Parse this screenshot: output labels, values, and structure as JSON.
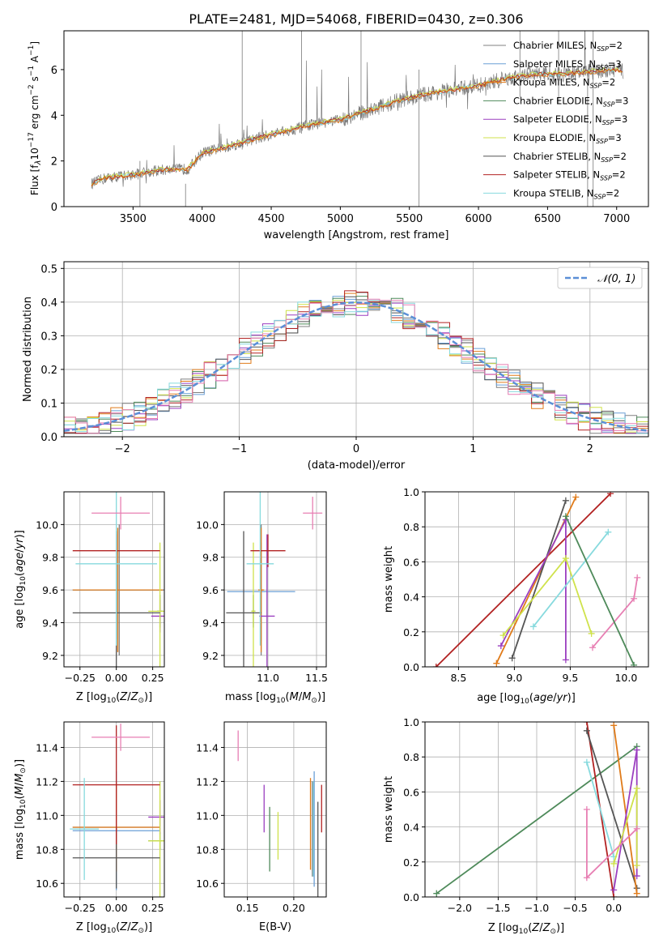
{
  "title": "PLATE=2481, MJD=54068, FIBERID=0430, z=0.306",
  "colors": {
    "chabrier_miles": "#808080",
    "salpeter_miles": "#6a9fd6",
    "kroupa_miles": "#e07b1a",
    "chabrier_elodie": "#4e8a5a",
    "salpeter_elodie": "#9b3fc0",
    "kroupa_elodie": "#cfe24b",
    "chabrier_stelib": "#555555",
    "salpeter_stelib": "#b22222",
    "kroupa_stelib": "#87dade",
    "normal_curve": "#5b8fd6",
    "pink": "#e77fb3"
  },
  "chart_data": [
    {
      "type": "line",
      "id": "spectrum",
      "xlabel": "wavelength [Angstrom, rest frame]",
      "ylabel": "Flux [f_λ 10^-17 erg cm^-2 s^-1 A^-1]",
      "xlim": [
        3000,
        7230
      ],
      "ylim": [
        0,
        7.7
      ],
      "xticks": [
        3500,
        4000,
        4500,
        5000,
        5500,
        6000,
        6500,
        7000
      ],
      "yticks": [
        0,
        2,
        4,
        6
      ],
      "legend_position": "right",
      "legend": [
        "Chabrier MILES, N_SSP=2",
        "Salpeter MILES, N_SSP=3",
        "Kroupa MILES, N_SSP=2",
        "Chabrier ELODIE, N_SSP=3",
        "Salpeter ELODIE, N_SSP=3",
        "Kroupa ELODIE, N_SSP=3",
        "Chabrier STELIB, N_SSP=2",
        "Salpeter STELIB, N_SSP=2",
        "Kroupa STELIB, N_SSP=2"
      ],
      "continuum": {
        "x": [
          3200,
          3300,
          3500,
          3700,
          3900,
          4000,
          4200,
          4400,
          4600,
          4800,
          5000,
          5200,
          5400,
          5600,
          5800,
          6000,
          6200,
          6400,
          6600,
          6800,
          7000,
          7050
        ],
        "y": [
          1.0,
          1.25,
          1.4,
          1.6,
          1.65,
          2.35,
          2.65,
          3.0,
          3.3,
          3.6,
          3.8,
          4.2,
          4.6,
          4.9,
          5.1,
          5.3,
          5.6,
          5.8,
          5.8,
          5.9,
          6.0,
          5.9
        ]
      }
    },
    {
      "type": "line",
      "id": "residuals",
      "xlabel": "(data-model)/error",
      "ylabel": "Normed distribution",
      "xlim": [
        -2.5,
        2.5
      ],
      "ylim": [
        0,
        0.52
      ],
      "xticks": [
        -2,
        -1,
        0,
        1,
        2
      ],
      "yticks": [
        0.0,
        0.1,
        0.2,
        0.3,
        0.4,
        0.5
      ],
      "legend_position": "top-right",
      "legend": [
        "𝒩(0, 1)"
      ]
    },
    {
      "type": "scatter",
      "id": "age_vs_Z",
      "xlabel": "Z [log10(Z/Z⊙)]",
      "ylabel": "age  [log10(age/yr)]",
      "xlim": [
        -0.36,
        0.33
      ],
      "ylim": [
        9.13,
        10.2
      ],
      "xticks": [
        -0.25,
        0.0,
        0.25
      ],
      "xticklabels": [
        "−0.25",
        "0.00",
        "0.25"
      ],
      "yticks": [
        9.2,
        9.4,
        9.6,
        9.8,
        10.0
      ],
      "series": [
        {
          "name": "Chabrier MILES",
          "color": "chabrier_miles",
          "x": 0.02,
          "y": 9.6,
          "xerr": 0.32,
          "yerr": 0.4
        },
        {
          "name": "Salpeter MILES",
          "color": "salpeter_miles",
          "x": 0.0,
          "y": 9.6,
          "xerr": 0.3,
          "yerr": 0.3
        },
        {
          "name": "Kroupa MILES",
          "color": "kroupa_miles",
          "x": 0.01,
          "y": 9.6,
          "xerr": 0.31,
          "yerr": 0.38
        },
        {
          "name": "Chabrier ELODIE",
          "color": "chabrier_elodie",
          "x": 0.3,
          "y": 9.47,
          "xerr": 0.02,
          "yerr": 0.1
        },
        {
          "name": "Salpeter ELODIE",
          "color": "salpeter_elodie",
          "x": 0.3,
          "y": 9.44,
          "xerr": 0.06,
          "yerr": 0.1
        },
        {
          "name": "Kroupa ELODIE",
          "color": "kroupa_elodie",
          "x": 0.3,
          "y": 9.47,
          "xerr": 0.08,
          "yerr": 0.42
        },
        {
          "name": "Chabrier STELIB",
          "color": "chabrier_stelib",
          "x": 0.0,
          "y": 9.46,
          "xerr": 0.3,
          "yerr": 0.5
        },
        {
          "name": "Salpeter STELIB",
          "color": "salpeter_stelib",
          "x": 0.0,
          "y": 9.84,
          "xerr": 0.3,
          "yerr": 0.1
        },
        {
          "name": "Kroupa STELIB",
          "color": "kroupa_stelib",
          "x": 0.0,
          "y": 9.76,
          "xerr": 0.28,
          "yerr": 0.5
        },
        {
          "name": "pink",
          "color": "pink",
          "x": 0.03,
          "y": 10.07,
          "xerr": 0.2,
          "yerr": 0.1
        }
      ]
    },
    {
      "type": "scatter",
      "id": "age_vs_mass",
      "xlabel": "mass [log10(M/M⊙)]",
      "ylabel": "",
      "xlim": [
        10.55,
        11.6
      ],
      "ylim": [
        9.13,
        10.2
      ],
      "xticks": [
        10.5,
        11.0,
        11.5
      ],
      "xticklabels": [
        "10.5",
        "11.0",
        "11.5"
      ],
      "yticks": [
        9.2,
        9.4,
        9.6,
        9.8,
        10.0
      ],
      "series": [
        {
          "name": "Chabrier MILES",
          "color": "chabrier_miles",
          "x": 10.93,
          "y": 9.6,
          "xerr": 0.02,
          "yerr": 0.4
        },
        {
          "name": "Salpeter MILES",
          "color": "salpeter_miles",
          "x": 10.93,
          "y": 9.59,
          "xerr": 0.35,
          "yerr": 0.3
        },
        {
          "name": "Kroupa MILES",
          "color": "kroupa_miles",
          "x": 10.93,
          "y": 9.6,
          "xerr": 0.03,
          "yerr": 0.38
        },
        {
          "name": "Chabrier ELODIE",
          "color": "chabrier_elodie",
          "x": 10.85,
          "y": 9.47,
          "xerr": 0.02,
          "yerr": 0.1
        },
        {
          "name": "Salpeter ELODIE",
          "color": "salpeter_elodie",
          "x": 10.99,
          "y": 9.44,
          "xerr": 0.08,
          "yerr": 0.5
        },
        {
          "name": "Kroupa ELODIE",
          "color": "kroupa_elodie",
          "x": 10.85,
          "y": 9.47,
          "xerr": 0.02,
          "yerr": 0.42
        },
        {
          "name": "Chabrier STELIB",
          "color": "chabrier_stelib",
          "x": 10.75,
          "y": 9.46,
          "xerr": 0.18,
          "yerr": 0.5
        },
        {
          "name": "Salpeter STELIB",
          "color": "salpeter_stelib",
          "x": 11.0,
          "y": 9.84,
          "xerr": 0.18,
          "yerr": 0.1
        },
        {
          "name": "Kroupa STELIB",
          "color": "kroupa_stelib",
          "x": 10.92,
          "y": 9.76,
          "xerr": 0.14,
          "yerr": 0.5
        },
        {
          "name": "pink",
          "color": "pink",
          "x": 11.46,
          "y": 10.07,
          "xerr": 0.1,
          "yerr": 0.1
        }
      ]
    },
    {
      "type": "line",
      "id": "massweight_vs_age",
      "xlabel": "age  [log10(age/yr)]",
      "ylabel": "mass weight",
      "xlim": [
        8.2,
        10.2
      ],
      "ylim": [
        0,
        1.0
      ],
      "xticks": [
        8.5,
        9.0,
        9.5,
        10.0
      ],
      "xticklabels": [
        "8.5",
        "9.0",
        "9.5",
        "10.0"
      ],
      "yticks": [
        0.0,
        0.2,
        0.4,
        0.6,
        0.8,
        1.0
      ],
      "series": [
        {
          "name": "Salpeter STELIB",
          "color": "salpeter_stelib",
          "x": [
            8.3,
            9.86
          ],
          "y": [
            0.0,
            0.99
          ]
        },
        {
          "name": "Kroupa MILES",
          "color": "kroupa_miles",
          "x": [
            8.84,
            9.55
          ],
          "y": [
            0.02,
            0.97
          ]
        },
        {
          "name": "Chabrier STELIB",
          "color": "chabrier_stelib",
          "x": [
            8.98,
            9.46
          ],
          "y": [
            0.05,
            0.95
          ]
        },
        {
          "name": "Salpeter ELODIE",
          "color": "salpeter_elodie",
          "x": [
            8.88,
            9.46,
            9.46
          ],
          "y": [
            0.12,
            0.84,
            0.04
          ]
        },
        {
          "name": "Kroupa ELODIE",
          "color": "kroupa_elodie",
          "x": [
            8.9,
            9.46,
            9.69
          ],
          "y": [
            0.18,
            0.62,
            0.19
          ]
        },
        {
          "name": "Kroupa STELIB",
          "color": "kroupa_stelib",
          "x": [
            9.17,
            9.84
          ],
          "y": [
            0.23,
            0.77
          ]
        },
        {
          "name": "pink",
          "color": "pink",
          "x": [
            9.7,
            10.07,
            10.1
          ],
          "y": [
            0.11,
            0.39,
            0.51
          ]
        },
        {
          "name": "Chabrier ELODIE",
          "color": "chabrier_elodie",
          "x": [
            9.46,
            10.07
          ],
          "y": [
            0.86,
            0.01
          ]
        }
      ]
    },
    {
      "type": "scatter",
      "id": "mass_vs_Z",
      "xlabel": "Z [log10(Z/Z⊙)]",
      "ylabel": "mass [log10(M/M⊙)]",
      "xlim": [
        -0.36,
        0.33
      ],
      "ylim": [
        10.52,
        11.55
      ],
      "xticks": [
        -0.25,
        0.0,
        0.25
      ],
      "xticklabels": [
        "−0.25",
        "0.00",
        "0.25"
      ],
      "yticks": [
        10.6,
        10.8,
        11.0,
        11.2,
        11.4
      ],
      "series": [
        {
          "name": "Chabrier MILES",
          "color": "chabrier_miles",
          "x": 0.0,
          "y": 10.93,
          "xerr": 0.3,
          "yerr": 0.02
        },
        {
          "name": "Salpeter MILES",
          "color": "salpeter_miles",
          "x": 0.0,
          "y": 10.91,
          "xerr": 0.3,
          "yerr": 0.35
        },
        {
          "name": "Kroupa MILES",
          "color": "kroupa_miles",
          "x": 0.0,
          "y": 10.93,
          "xerr": 0.3,
          "yerr": 0.26
        },
        {
          "name": "Chabrier ELODIE",
          "color": "chabrier_elodie",
          "x": 0.3,
          "y": 10.85,
          "xerr": 0.08,
          "yerr": 0.05
        },
        {
          "name": "Salpeter ELODIE",
          "color": "salpeter_elodie",
          "x": 0.3,
          "y": 10.99,
          "xerr": 0.08,
          "yerr": 0.1
        },
        {
          "name": "Kroupa ELODIE",
          "color": "kroupa_elodie",
          "x": 0.3,
          "y": 10.85,
          "xerr": 0.08,
          "yerr": 0.35
        },
        {
          "name": "Chabrier STELIB",
          "color": "chabrier_stelib",
          "x": 0.0,
          "y": 10.75,
          "xerr": 0.3,
          "yerr": 0.18
        },
        {
          "name": "Salpeter STELIB",
          "color": "salpeter_stelib",
          "x": 0.0,
          "y": 11.18,
          "xerr": 0.3,
          "yerr": 0.35
        },
        {
          "name": "Kroupa STELIB",
          "color": "kroupa_stelib",
          "x": -0.22,
          "y": 10.92,
          "xerr": 0.1,
          "yerr": 0.3
        },
        {
          "name": "pink",
          "color": "pink",
          "x": 0.03,
          "y": 11.46,
          "xerr": 0.2,
          "yerr": 0.08
        }
      ]
    },
    {
      "type": "scatter",
      "id": "mass_vs_ebv",
      "xlabel": "E(B-V)",
      "ylabel": "",
      "xlim": [
        0.125,
        0.235
      ],
      "ylim": [
        10.52,
        11.55
      ],
      "xticks": [
        0.15,
        0.2
      ],
      "xticklabels": [
        "0.15",
        "0.20"
      ],
      "yticks": [
        10.6,
        10.8,
        11.0,
        11.2,
        11.4
      ],
      "series": [
        {
          "name": "pink",
          "color": "pink",
          "x": 0.14,
          "y": 11.41,
          "yerr": 0.09
        },
        {
          "name": "Salpeter ELODIE",
          "color": "salpeter_elodie",
          "x": 0.168,
          "y": 11.04,
          "yerr": 0.14
        },
        {
          "name": "Chabrier ELODIE",
          "color": "chabrier_elodie",
          "x": 0.174,
          "y": 10.86,
          "yerr": 0.19
        },
        {
          "name": "Kroupa ELODIE",
          "color": "kroupa_elodie",
          "x": 0.183,
          "y": 10.88,
          "yerr": 0.14
        },
        {
          "name": "Kroupa MILES",
          "color": "kroupa_miles",
          "x": 0.218,
          "y": 10.95,
          "yerr": 0.27
        },
        {
          "name": "Chabrier MILES",
          "color": "chabrier_miles",
          "x": 0.22,
          "y": 10.92,
          "yerr": 0.28
        },
        {
          "name": "Kroupa STELIB",
          "color": "kroupa_stelib",
          "x": 0.221,
          "y": 10.92,
          "yerr": 0.28
        },
        {
          "name": "Salpeter MILES",
          "color": "salpeter_miles",
          "x": 0.222,
          "y": 10.92,
          "yerr": 0.34
        },
        {
          "name": "Chabrier STELIB",
          "color": "chabrier_stelib",
          "x": 0.226,
          "y": 10.78,
          "yerr": 0.3
        },
        {
          "name": "Salpeter STELIB",
          "color": "salpeter_stelib",
          "x": 0.23,
          "y": 11.04,
          "yerr": 0.14
        }
      ]
    },
    {
      "type": "line",
      "id": "massweight_vs_Z",
      "xlabel": "Z [log10(Z/Z⊙)]",
      "ylabel": "mass weight",
      "xlim": [
        -2.45,
        0.45
      ],
      "ylim": [
        0,
        1.0
      ],
      "xticks": [
        -2.0,
        -1.5,
        -1.0,
        -0.5,
        0.0
      ],
      "xticklabels": [
        "−2.0",
        "−1.5",
        "−1.0",
        "−0.5",
        "0.0"
      ],
      "yticks": [
        0.0,
        0.2,
        0.4,
        0.6,
        0.8,
        1.0
      ],
      "series": [
        {
          "name": "Chabrier ELODIE",
          "color": "chabrier_elodie",
          "x": [
            -2.3,
            0.3
          ],
          "y": [
            0.02,
            0.86
          ]
        },
        {
          "name": "Salpeter STELIB",
          "color": "salpeter_stelib",
          "x": [
            -0.35,
            0.0
          ],
          "y": [
            1.0,
            0.0
          ]
        },
        {
          "name": "Chabrier STELIB",
          "color": "chabrier_stelib",
          "x": [
            -0.35,
            0.3
          ],
          "y": [
            0.95,
            0.05
          ]
        },
        {
          "name": "Kroupa MILES",
          "color": "kroupa_miles",
          "x": [
            0.0,
            0.3
          ],
          "y": [
            0.98,
            0.02
          ]
        },
        {
          "name": "Kroupa STELIB",
          "color": "kroupa_stelib",
          "x": [
            -0.35,
            0.0
          ],
          "y": [
            0.77,
            0.23
          ]
        },
        {
          "name": "Salpeter ELODIE",
          "color": "salpeter_elodie",
          "x": [
            0.0,
            0.3,
            0.3
          ],
          "y": [
            0.04,
            0.84,
            0.12
          ]
        },
        {
          "name": "Kroupa ELODIE",
          "color": "kroupa_elodie",
          "x": [
            0.0,
            0.3,
            0.3
          ],
          "y": [
            0.19,
            0.62,
            0.18
          ]
        },
        {
          "name": "pink",
          "color": "pink",
          "x": [
            -0.35,
            -0.35,
            0.3
          ],
          "y": [
            0.5,
            0.11,
            0.39
          ]
        }
      ]
    }
  ]
}
